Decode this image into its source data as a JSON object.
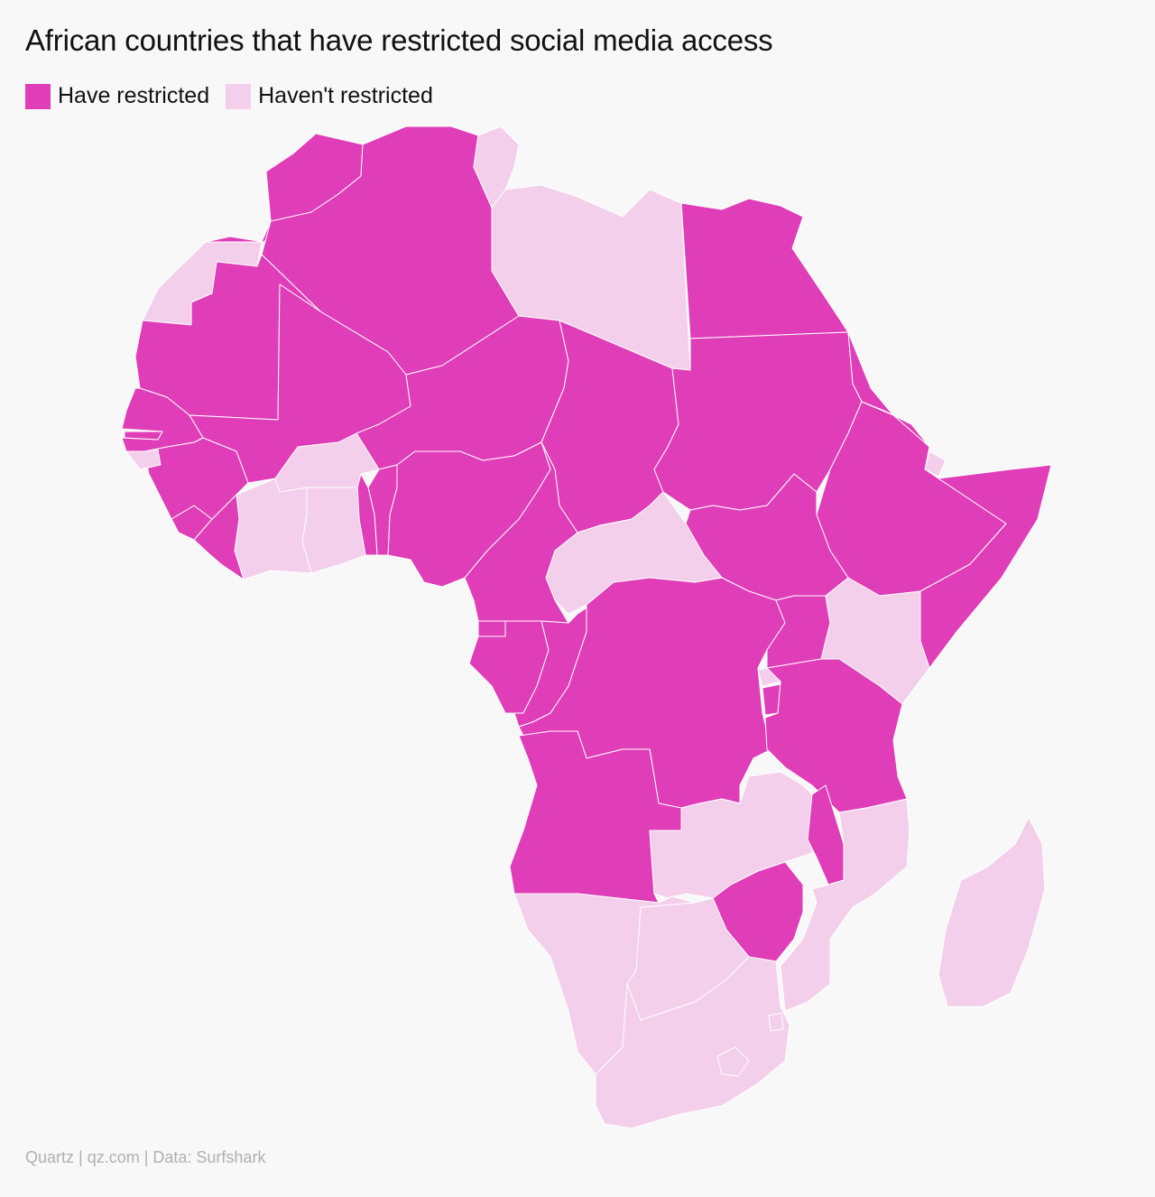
{
  "title": "African countries that have restricted social media access",
  "legend": [
    {
      "label": "Have restricted",
      "color": "#e03db8"
    },
    {
      "label": "Haven't restricted",
      "color": "#f3cfeb"
    }
  ],
  "footer": "Quartz | qz.com | Data: Surfshark",
  "colors": {
    "restricted": "#e03db8",
    "not_restricted": "#f3cfeb",
    "background": "#f8f8f8",
    "border": "#ffffff"
  },
  "countries": [
    {
      "name": "Morocco",
      "status": "restricted"
    },
    {
      "name": "Algeria",
      "status": "restricted"
    },
    {
      "name": "Tunisia",
      "status": "not_restricted"
    },
    {
      "name": "Libya",
      "status": "not_restricted"
    },
    {
      "name": "Egypt",
      "status": "restricted"
    },
    {
      "name": "Western Sahara",
      "status": "not_restricted"
    },
    {
      "name": "Mauritania",
      "status": "restricted"
    },
    {
      "name": "Mali",
      "status": "restricted"
    },
    {
      "name": "Niger",
      "status": "restricted"
    },
    {
      "name": "Chad",
      "status": "restricted"
    },
    {
      "name": "Sudan",
      "status": "restricted"
    },
    {
      "name": "Eritrea",
      "status": "restricted"
    },
    {
      "name": "Djibouti",
      "status": "not_restricted"
    },
    {
      "name": "Ethiopia",
      "status": "restricted"
    },
    {
      "name": "Somalia",
      "status": "restricted"
    },
    {
      "name": "South Sudan",
      "status": "restricted"
    },
    {
      "name": "Central African Republic",
      "status": "not_restricted"
    },
    {
      "name": "Cameroon",
      "status": "restricted"
    },
    {
      "name": "Nigeria",
      "status": "restricted"
    },
    {
      "name": "Benin",
      "status": "restricted"
    },
    {
      "name": "Togo",
      "status": "restricted"
    },
    {
      "name": "Ghana",
      "status": "not_restricted"
    },
    {
      "name": "Cote d'Ivoire",
      "status": "not_restricted"
    },
    {
      "name": "Burkina Faso",
      "status": "not_restricted"
    },
    {
      "name": "Liberia",
      "status": "restricted"
    },
    {
      "name": "Sierra Leone",
      "status": "restricted"
    },
    {
      "name": "Guinea",
      "status": "restricted"
    },
    {
      "name": "Guinea-Bissau",
      "status": "not_restricted"
    },
    {
      "name": "Senegal",
      "status": "restricted"
    },
    {
      "name": "Gambia",
      "status": "restricted"
    },
    {
      "name": "Equatorial Guinea",
      "status": "restricted"
    },
    {
      "name": "Gabon",
      "status": "restricted"
    },
    {
      "name": "Republic of the Congo",
      "status": "restricted"
    },
    {
      "name": "DR Congo",
      "status": "restricted"
    },
    {
      "name": "Uganda",
      "status": "restricted"
    },
    {
      "name": "Kenya",
      "status": "not_restricted"
    },
    {
      "name": "Rwanda",
      "status": "not_restricted"
    },
    {
      "name": "Burundi",
      "status": "restricted"
    },
    {
      "name": "Tanzania",
      "status": "restricted"
    },
    {
      "name": "Angola",
      "status": "restricted"
    },
    {
      "name": "Zambia",
      "status": "not_restricted"
    },
    {
      "name": "Malawi",
      "status": "restricted"
    },
    {
      "name": "Mozambique",
      "status": "not_restricted"
    },
    {
      "name": "Zimbabwe",
      "status": "restricted"
    },
    {
      "name": "Namibia",
      "status": "not_restricted"
    },
    {
      "name": "Botswana",
      "status": "not_restricted"
    },
    {
      "name": "South Africa",
      "status": "not_restricted"
    },
    {
      "name": "Lesotho",
      "status": "not_restricted"
    },
    {
      "name": "Eswatini",
      "status": "not_restricted"
    },
    {
      "name": "Madagascar",
      "status": "not_restricted"
    }
  ]
}
